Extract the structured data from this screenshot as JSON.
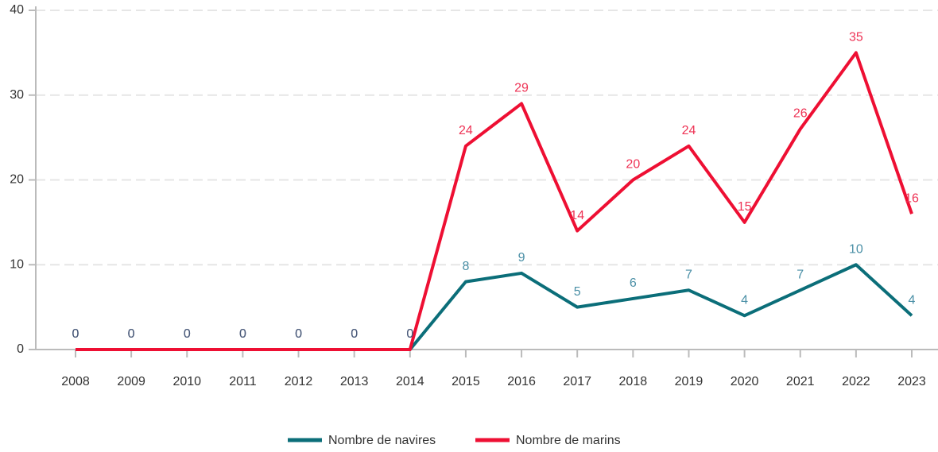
{
  "chart_data": {
    "type": "line",
    "categories": [
      "2008",
      "2009",
      "2010",
      "2011",
      "2012",
      "2013",
      "2014",
      "2015",
      "2016",
      "2017",
      "2018",
      "2019",
      "2020",
      "2021",
      "2022",
      "2023"
    ],
    "series": [
      {
        "name": "Nombre de navires",
        "color": "#0b6e79",
        "label_color": "#4a8fa6",
        "values": [
          0,
          0,
          0,
          0,
          0,
          0,
          0,
          8,
          9,
          5,
          6,
          7,
          4,
          7,
          10,
          4
        ]
      },
      {
        "name": "Nombre de marins",
        "color": "#ee0f33",
        "label_color": "#ee3355",
        "values": [
          0,
          0,
          0,
          0,
          0,
          0,
          0,
          24,
          29,
          14,
          20,
          24,
          15,
          26,
          35,
          16
        ]
      }
    ],
    "ylim": [
      0,
      40
    ],
    "yticks": [
      0,
      10,
      20,
      30,
      40
    ],
    "grid": true,
    "legend": "bottom"
  }
}
